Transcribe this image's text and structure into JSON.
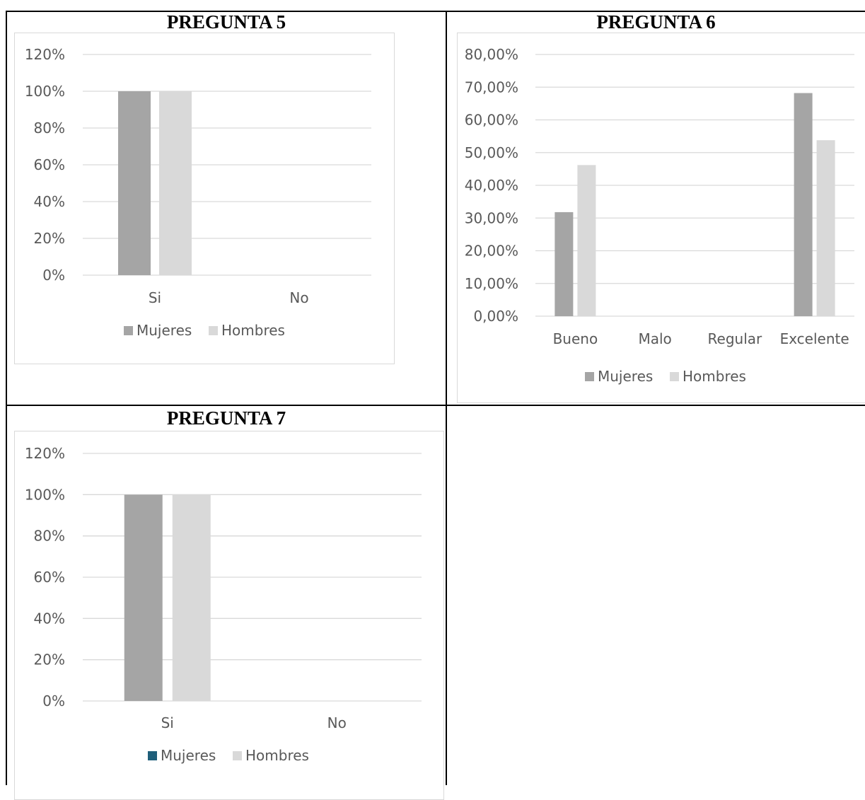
{
  "colors": {
    "mujeres": "#a5a5a5",
    "hombres": "#d9d9d9",
    "mujeres_legend_q7": "#1f5f7a",
    "grid": "#d9d9d9",
    "text": "#595959"
  },
  "chart_data": [
    {
      "id": "q5",
      "type": "bar",
      "title": "PREGUNTA 5",
      "categories": [
        "Si",
        "No"
      ],
      "series": [
        {
          "name": "Mujeres",
          "values": [
            100,
            0
          ]
        },
        {
          "name": "Hombres",
          "values": [
            100,
            0
          ]
        }
      ],
      "yticks": [
        "0%",
        "20%",
        "40%",
        "60%",
        "80%",
        "100%",
        "120%"
      ],
      "ylim": [
        0,
        120
      ],
      "grid": true,
      "legend": "bottom"
    },
    {
      "id": "q6",
      "type": "bar",
      "title": "PREGUNTA 6",
      "categories": [
        "Bueno",
        "Malo",
        "Regular",
        "Excelente"
      ],
      "series": [
        {
          "name": "Mujeres",
          "values": [
            31.8,
            0,
            0,
            68.2
          ]
        },
        {
          "name": "Hombres",
          "values": [
            46.2,
            0,
            0,
            53.8
          ]
        }
      ],
      "yticks": [
        "0,00%",
        "10,00%",
        "20,00%",
        "30,00%",
        "40,00%",
        "50,00%",
        "60,00%",
        "70,00%",
        "80,00%"
      ],
      "ylim": [
        0,
        80
      ],
      "grid": true,
      "legend": "bottom"
    },
    {
      "id": "q7",
      "type": "bar",
      "title": "PREGUNTA 7",
      "categories": [
        "Si",
        "No"
      ],
      "series": [
        {
          "name": "Mujeres",
          "values": [
            100,
            0
          ]
        },
        {
          "name": "Hombres",
          "values": [
            100,
            0
          ]
        }
      ],
      "yticks": [
        "0%",
        "20%",
        "40%",
        "60%",
        "80%",
        "100%",
        "120%"
      ],
      "ylim": [
        0,
        120
      ],
      "grid": true,
      "legend": "bottom"
    }
  ]
}
